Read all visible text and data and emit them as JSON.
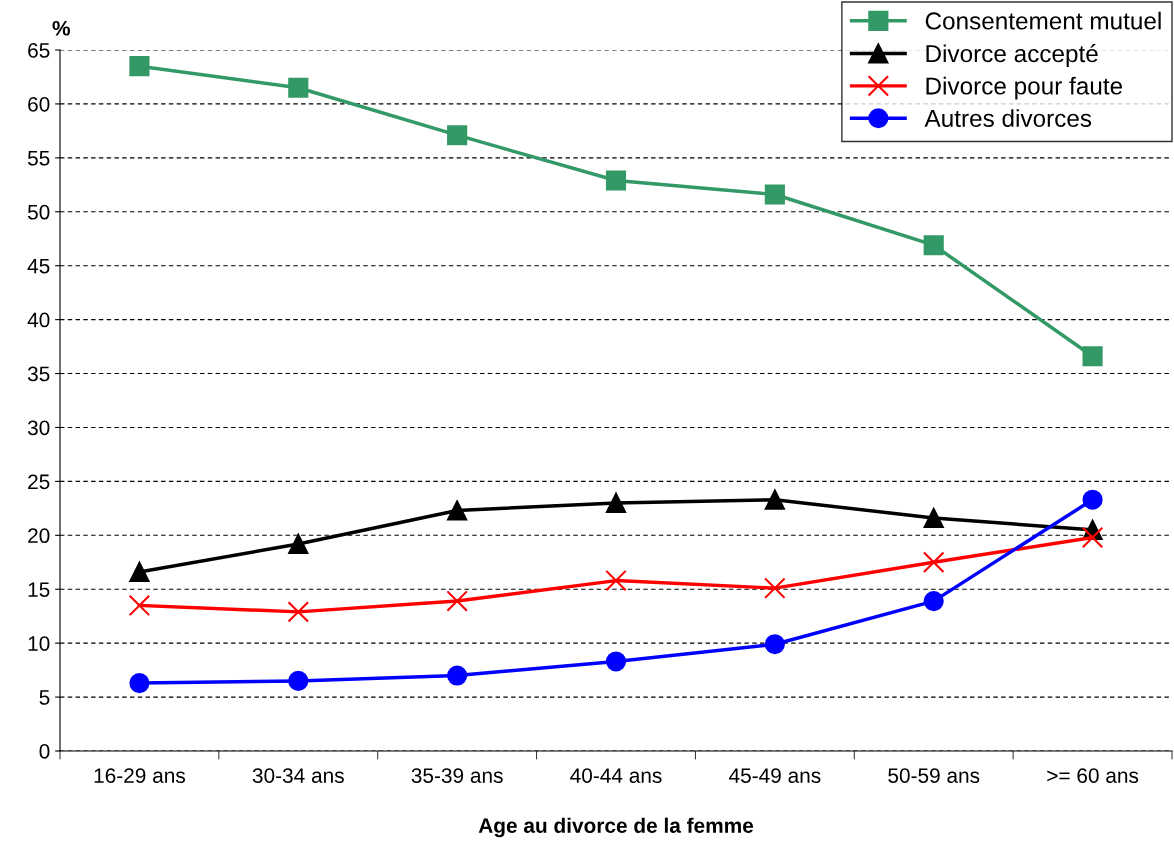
{
  "chart_data": {
    "type": "line",
    "ylabel": "%",
    "xlabel": "Age au divorce de la femme",
    "categories": [
      "16-29 ans",
      "30-34 ans",
      "35-39 ans",
      "40-44 ans",
      "45-49 ans",
      "50-59 ans",
      ">= 60 ans"
    ],
    "series": [
      {
        "name": "Consentement mutuel",
        "color": "#339966",
        "marker": "square",
        "values": [
          63.5,
          61.5,
          57.1,
          52.9,
          51.6,
          46.9,
          36.6
        ]
      },
      {
        "name": "Divorce accepté",
        "color": "#000000",
        "marker": "triangle",
        "values": [
          16.6,
          19.2,
          22.3,
          23.0,
          23.3,
          21.6,
          20.5
        ]
      },
      {
        "name": "Divorce pour faute",
        "color": "#ff0000",
        "marker": "cross",
        "values": [
          13.5,
          12.9,
          13.9,
          15.8,
          15.1,
          17.5,
          19.8
        ]
      },
      {
        "name": "Autres divorces",
        "color": "#0000ff",
        "marker": "circle",
        "values": [
          6.3,
          6.5,
          7.0,
          8.3,
          9.9,
          13.9,
          23.3
        ]
      }
    ],
    "ylim": [
      0,
      65
    ],
    "yticks": [
      0,
      5,
      10,
      15,
      20,
      25,
      30,
      35,
      40,
      45,
      50,
      55,
      60,
      65
    ],
    "grid": "y",
    "legend": "top right",
    "line_style": "solid"
  }
}
